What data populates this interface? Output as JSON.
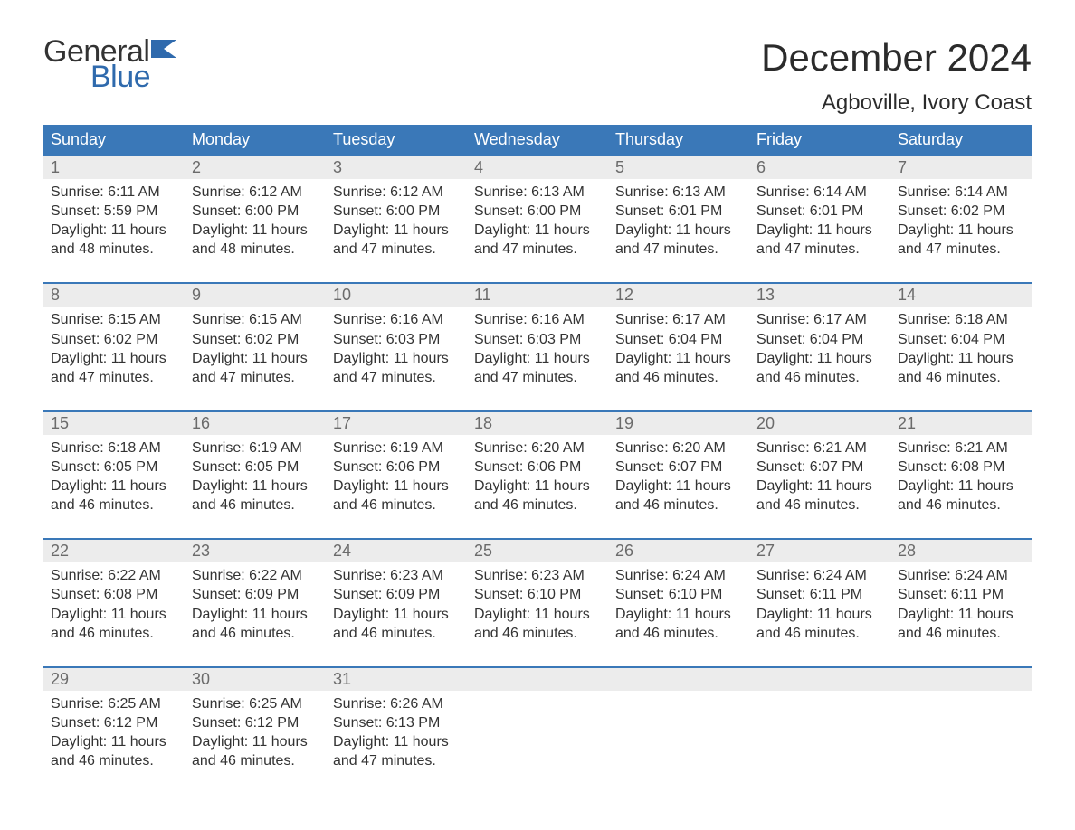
{
  "logo": {
    "text1": "General",
    "text2": "Blue",
    "flag_color": "#2f6aad"
  },
  "header": {
    "month_title": "December 2024",
    "location": "Agboville, Ivory Coast"
  },
  "colors": {
    "header_bg": "#3a78b8",
    "header_text": "#ffffff",
    "daynum_bg": "#ececec",
    "daynum_text": "#6b6b6b",
    "body_text": "#333333",
    "week_border": "#3a78b8",
    "background": "#ffffff"
  },
  "typography": {
    "month_title_fontsize": 42,
    "location_fontsize": 24,
    "weekday_fontsize": 18,
    "daynum_fontsize": 18,
    "detail_fontsize": 16
  },
  "weekdays": [
    "Sunday",
    "Monday",
    "Tuesday",
    "Wednesday",
    "Thursday",
    "Friday",
    "Saturday"
  ],
  "labels": {
    "sunrise": "Sunrise:",
    "sunset": "Sunset:",
    "daylight": "Daylight:"
  },
  "days": [
    {
      "n": "1",
      "sunrise": "6:11 AM",
      "sunset": "5:59 PM",
      "daylight": "11 hours and 48 minutes."
    },
    {
      "n": "2",
      "sunrise": "6:12 AM",
      "sunset": "6:00 PM",
      "daylight": "11 hours and 48 minutes."
    },
    {
      "n": "3",
      "sunrise": "6:12 AM",
      "sunset": "6:00 PM",
      "daylight": "11 hours and 47 minutes."
    },
    {
      "n": "4",
      "sunrise": "6:13 AM",
      "sunset": "6:00 PM",
      "daylight": "11 hours and 47 minutes."
    },
    {
      "n": "5",
      "sunrise": "6:13 AM",
      "sunset": "6:01 PM",
      "daylight": "11 hours and 47 minutes."
    },
    {
      "n": "6",
      "sunrise": "6:14 AM",
      "sunset": "6:01 PM",
      "daylight": "11 hours and 47 minutes."
    },
    {
      "n": "7",
      "sunrise": "6:14 AM",
      "sunset": "6:02 PM",
      "daylight": "11 hours and 47 minutes."
    },
    {
      "n": "8",
      "sunrise": "6:15 AM",
      "sunset": "6:02 PM",
      "daylight": "11 hours and 47 minutes."
    },
    {
      "n": "9",
      "sunrise": "6:15 AM",
      "sunset": "6:02 PM",
      "daylight": "11 hours and 47 minutes."
    },
    {
      "n": "10",
      "sunrise": "6:16 AM",
      "sunset": "6:03 PM",
      "daylight": "11 hours and 47 minutes."
    },
    {
      "n": "11",
      "sunrise": "6:16 AM",
      "sunset": "6:03 PM",
      "daylight": "11 hours and 47 minutes."
    },
    {
      "n": "12",
      "sunrise": "6:17 AM",
      "sunset": "6:04 PM",
      "daylight": "11 hours and 46 minutes."
    },
    {
      "n": "13",
      "sunrise": "6:17 AM",
      "sunset": "6:04 PM",
      "daylight": "11 hours and 46 minutes."
    },
    {
      "n": "14",
      "sunrise": "6:18 AM",
      "sunset": "6:04 PM",
      "daylight": "11 hours and 46 minutes."
    },
    {
      "n": "15",
      "sunrise": "6:18 AM",
      "sunset": "6:05 PM",
      "daylight": "11 hours and 46 minutes."
    },
    {
      "n": "16",
      "sunrise": "6:19 AM",
      "sunset": "6:05 PM",
      "daylight": "11 hours and 46 minutes."
    },
    {
      "n": "17",
      "sunrise": "6:19 AM",
      "sunset": "6:06 PM",
      "daylight": "11 hours and 46 minutes."
    },
    {
      "n": "18",
      "sunrise": "6:20 AM",
      "sunset": "6:06 PM",
      "daylight": "11 hours and 46 minutes."
    },
    {
      "n": "19",
      "sunrise": "6:20 AM",
      "sunset": "6:07 PM",
      "daylight": "11 hours and 46 minutes."
    },
    {
      "n": "20",
      "sunrise": "6:21 AM",
      "sunset": "6:07 PM",
      "daylight": "11 hours and 46 minutes."
    },
    {
      "n": "21",
      "sunrise": "6:21 AM",
      "sunset": "6:08 PM",
      "daylight": "11 hours and 46 minutes."
    },
    {
      "n": "22",
      "sunrise": "6:22 AM",
      "sunset": "6:08 PM",
      "daylight": "11 hours and 46 minutes."
    },
    {
      "n": "23",
      "sunrise": "6:22 AM",
      "sunset": "6:09 PM",
      "daylight": "11 hours and 46 minutes."
    },
    {
      "n": "24",
      "sunrise": "6:23 AM",
      "sunset": "6:09 PM",
      "daylight": "11 hours and 46 minutes."
    },
    {
      "n": "25",
      "sunrise": "6:23 AM",
      "sunset": "6:10 PM",
      "daylight": "11 hours and 46 minutes."
    },
    {
      "n": "26",
      "sunrise": "6:24 AM",
      "sunset": "6:10 PM",
      "daylight": "11 hours and 46 minutes."
    },
    {
      "n": "27",
      "sunrise": "6:24 AM",
      "sunset": "6:11 PM",
      "daylight": "11 hours and 46 minutes."
    },
    {
      "n": "28",
      "sunrise": "6:24 AM",
      "sunset": "6:11 PM",
      "daylight": "11 hours and 46 minutes."
    },
    {
      "n": "29",
      "sunrise": "6:25 AM",
      "sunset": "6:12 PM",
      "daylight": "11 hours and 46 minutes."
    },
    {
      "n": "30",
      "sunrise": "6:25 AM",
      "sunset": "6:12 PM",
      "daylight": "11 hours and 46 minutes."
    },
    {
      "n": "31",
      "sunrise": "6:26 AM",
      "sunset": "6:13 PM",
      "daylight": "11 hours and 47 minutes."
    }
  ],
  "layout": {
    "first_weekday_index": 0,
    "weeks": 5,
    "columns": 7
  }
}
